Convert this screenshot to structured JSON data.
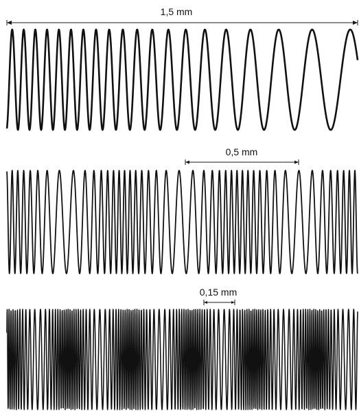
{
  "panels": [
    {
      "label": "1,5 mm"
    },
    {
      "label": "0,5 mm"
    },
    {
      "label": "0,15 mm"
    }
  ],
  "colors": {
    "wave": "#111111",
    "background": "#ffffff"
  }
}
